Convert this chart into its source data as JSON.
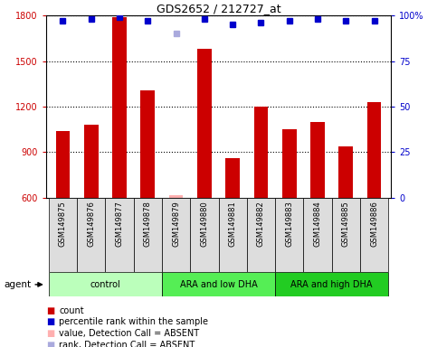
{
  "title": "GDS2652 / 212727_at",
  "samples": [
    "GSM149875",
    "GSM149876",
    "GSM149877",
    "GSM149878",
    "GSM149879",
    "GSM149880",
    "GSM149881",
    "GSM149882",
    "GSM149883",
    "GSM149884",
    "GSM149885",
    "GSM149886"
  ],
  "bar_values": [
    1040,
    1080,
    1790,
    1310,
    null,
    1580,
    860,
    1200,
    1050,
    1100,
    940,
    1230
  ],
  "absent_bar_value": 620,
  "absent_bar_index": 4,
  "percentile_values": [
    97,
    98,
    99,
    97,
    null,
    98,
    95,
    96,
    97,
    98,
    97,
    97
  ],
  "absent_percentile_value": 90,
  "absent_percentile_index": 4,
  "bar_color": "#CC0000",
  "absent_bar_color": "#FFB0B0",
  "percentile_color": "#0000CC",
  "absent_percentile_color": "#AAAADD",
  "ylim_left": [
    600,
    1800
  ],
  "ylim_right": [
    0,
    100
  ],
  "yticks_left": [
    600,
    900,
    1200,
    1500,
    1800
  ],
  "yticks_right": [
    0,
    25,
    50,
    75,
    100
  ],
  "groups": [
    {
      "label": "control",
      "start": 0,
      "end": 3,
      "color": "#BBFFBB"
    },
    {
      "label": "ARA and low DHA",
      "start": 4,
      "end": 7,
      "color": "#55EE55"
    },
    {
      "label": "ARA and high DHA",
      "start": 8,
      "end": 11,
      "color": "#22CC22"
    }
  ],
  "background_color": "#FFFFFF",
  "plot_bg_color": "#FFFFFF",
  "tick_label_color_left": "#CC0000",
  "tick_label_color_right": "#0000CC",
  "bar_width": 0.5,
  "legend_items": [
    {
      "color": "#CC0000",
      "label": "count"
    },
    {
      "color": "#0000CC",
      "label": "percentile rank within the sample"
    },
    {
      "color": "#FFB0B0",
      "label": "value, Detection Call = ABSENT"
    },
    {
      "color": "#AAAADD",
      "label": "rank, Detection Call = ABSENT"
    }
  ]
}
